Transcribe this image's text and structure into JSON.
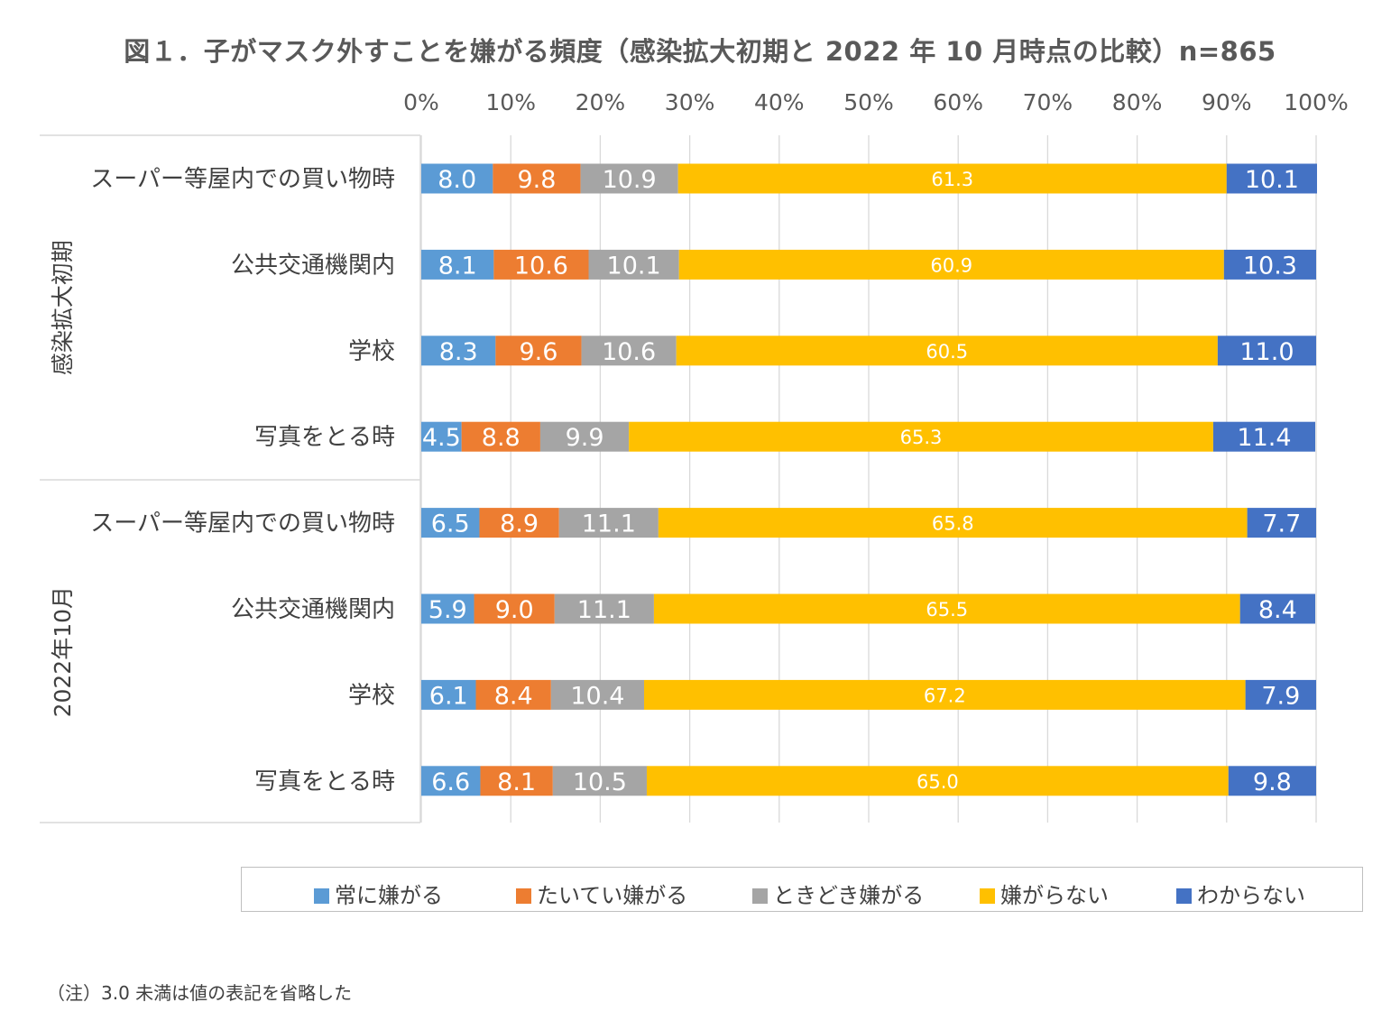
{
  "chart_data": {
    "type": "bar",
    "orientation": "horizontal-stacked-100",
    "title": "図１．子がマスク外すことを嫌がる頻度（感染拡大初期と 2022 年 10 月時点の比較）n=865",
    "x_ticks": [
      "0%",
      "10%",
      "20%",
      "30%",
      "40%",
      "50%",
      "60%",
      "70%",
      "80%",
      "90%",
      "100%"
    ],
    "xlim": [
      0,
      100
    ],
    "groups": [
      {
        "label": "感染拡大初期",
        "categories": [
          "スーパー等屋内での買い物時",
          "公共交通機関内",
          "学校",
          "写真をとる時"
        ]
      },
      {
        "label": "2022年10月",
        "categories": [
          "スーパー等屋内での買い物時",
          "公共交通機関内",
          "学校",
          "写真をとる時"
        ]
      }
    ],
    "series": [
      {
        "name": "常に嫌がる",
        "color": "#5b9bd5",
        "values": [
          8.0,
          8.1,
          8.3,
          4.5,
          6.5,
          5.9,
          6.1,
          6.6
        ]
      },
      {
        "name": "たいてい嫌がる",
        "color": "#ed7d31",
        "values": [
          9.8,
          10.6,
          9.6,
          8.8,
          8.9,
          9.0,
          8.4,
          8.1
        ]
      },
      {
        "name": "ときどき嫌がる",
        "color": "#a5a5a5",
        "values": [
          10.9,
          10.1,
          10.6,
          9.9,
          11.1,
          11.1,
          10.4,
          10.5
        ]
      },
      {
        "name": "嫌がらない",
        "color": "#ffc000",
        "values": [
          61.3,
          60.9,
          60.5,
          65.3,
          65.8,
          65.5,
          67.2,
          65.0
        ]
      },
      {
        "name": "わからない",
        "color": "#4472c4",
        "values": [
          10.1,
          10.3,
          11.0,
          11.4,
          7.7,
          8.4,
          7.9,
          9.8
        ]
      }
    ],
    "legend_position": "bottom",
    "grid": true
  },
  "footnote": "（注）3.0 未満は値の表記を省略した"
}
